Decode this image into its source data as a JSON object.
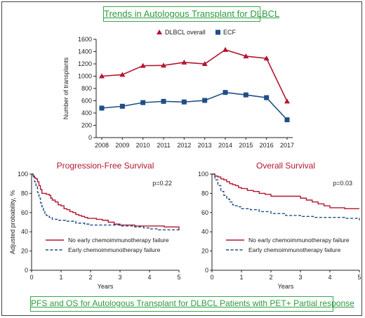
{
  "header": {
    "title": "Trends in Autologous Transplant for DLBCL"
  },
  "footer": {
    "title": "PFS and OS for Autologous Transplant for DLBCL Patients with PET+ Partial response"
  },
  "colors": {
    "red": "#b3162f",
    "blue": "#1f4e86",
    "dash": "#1f4e86",
    "green": "#2e9a3e"
  },
  "chart_data": [
    {
      "type": "line",
      "title": "",
      "xlabel": "",
      "ylabel": "Number of transplants",
      "categories": [
        "2008",
        "2009",
        "2010",
        "2011",
        "2012",
        "2013",
        "2014",
        "2015",
        "2016",
        "2017"
      ],
      "ylim": [
        0,
        1600
      ],
      "yticks": [
        "0",
        "200",
        "400",
        "600",
        "800",
        "1000",
        "1200",
        "1400",
        "1600"
      ],
      "legend_position": "top",
      "series": [
        {
          "name": "DLBCL overall",
          "marker": "triangle",
          "values": [
            1000,
            1025,
            1170,
            1175,
            1225,
            1200,
            1430,
            1325,
            1290,
            590
          ]
        },
        {
          "name": "ECF",
          "marker": "square",
          "values": [
            480,
            510,
            570,
            590,
            580,
            605,
            735,
            695,
            650,
            290
          ]
        }
      ]
    },
    {
      "type": "line",
      "title": "Progression-Free Survival",
      "xlabel": "Years",
      "ylabel": "Adjusted probability, %",
      "annotation": "p=0.22",
      "xlim": [
        0,
        5
      ],
      "ylim": [
        0,
        100
      ],
      "xticks": [
        "0",
        "1",
        "2",
        "3",
        "4",
        "5"
      ],
      "yticks": [
        "0",
        "20",
        "40",
        "60",
        "80",
        "100"
      ],
      "series": [
        {
          "name": "No early chemoimmunotherapy failure",
          "style": "solid",
          "x": [
            0,
            0.05,
            0.1,
            0.15,
            0.2,
            0.25,
            0.3,
            0.35,
            0.4,
            0.5,
            0.6,
            0.65,
            0.7,
            0.8,
            0.9,
            1.0,
            1.1,
            1.2,
            1.3,
            1.4,
            1.5,
            1.6,
            1.7,
            1.8,
            1.9,
            2.0,
            2.2,
            2.4,
            2.6,
            2.8,
            3.0,
            3.5,
            4.0,
            4.5,
            4.95,
            5.0
          ],
          "y": [
            100,
            98,
            96,
            95,
            92,
            88,
            84,
            80,
            80,
            79,
            78,
            75,
            73,
            71,
            68,
            67,
            64,
            63,
            61,
            60,
            58,
            57,
            56,
            55,
            54,
            54,
            53,
            52,
            50,
            48,
            47,
            46,
            46,
            45,
            45,
            42
          ]
        },
        {
          "name": "Early chemoimmunotherapy failure",
          "style": "dashed",
          "x": [
            0,
            0.05,
            0.1,
            0.15,
            0.2,
            0.25,
            0.3,
            0.35,
            0.4,
            0.45,
            0.5,
            0.6,
            0.7,
            0.8,
            0.9,
            1.0,
            1.2,
            1.5,
            1.8,
            2.0,
            2.5,
            3.0,
            3.5,
            3.8,
            4.0,
            4.3,
            4.5,
            5.0
          ],
          "y": [
            100,
            97,
            92,
            87,
            81,
            75,
            70,
            66,
            62,
            59,
            57,
            55,
            53,
            53,
            52,
            52,
            51,
            49,
            48,
            47,
            47,
            46,
            45,
            44,
            43,
            42,
            42,
            41
          ]
        }
      ]
    },
    {
      "type": "line",
      "title": "Overall Survival",
      "xlabel": "Years",
      "ylabel": "",
      "annotation": "p=0.03",
      "xlim": [
        0,
        5
      ],
      "ylim": [
        0,
        100
      ],
      "xticks": [
        "0",
        "1",
        "2",
        "3",
        "4",
        "5"
      ],
      "yticks": [
        "0",
        "20",
        "40",
        "60",
        "80",
        "100"
      ],
      "series": [
        {
          "name": "No early chemoimmunotherapy failure",
          "style": "solid",
          "x": [
            0,
            0.1,
            0.2,
            0.3,
            0.4,
            0.5,
            0.6,
            0.7,
            0.8,
            0.9,
            1.0,
            1.2,
            1.4,
            1.6,
            1.8,
            2.0,
            2.5,
            3.0,
            3.2,
            3.4,
            3.6,
            3.8,
            4.0,
            4.5,
            5.0
          ],
          "y": [
            100,
            98,
            97,
            95,
            94,
            92,
            90,
            89,
            88,
            86,
            85,
            83,
            82,
            80,
            79,
            77,
            77,
            75,
            73,
            71,
            69,
            67,
            65,
            64,
            64
          ]
        },
        {
          "name": "Early chemoimmunotherapy failure",
          "style": "dashed",
          "x": [
            0,
            0.1,
            0.2,
            0.3,
            0.4,
            0.5,
            0.6,
            0.7,
            0.8,
            0.9,
            1.0,
            1.3,
            1.6,
            2.0,
            2.5,
            3.0,
            3.5,
            4.0,
            4.5,
            5.0
          ],
          "y": [
            100,
            94,
            88,
            82,
            78,
            74,
            71,
            68,
            67,
            66,
            64,
            63,
            61,
            59,
            57,
            56,
            55,
            55,
            54,
            52
          ]
        }
      ]
    }
  ]
}
